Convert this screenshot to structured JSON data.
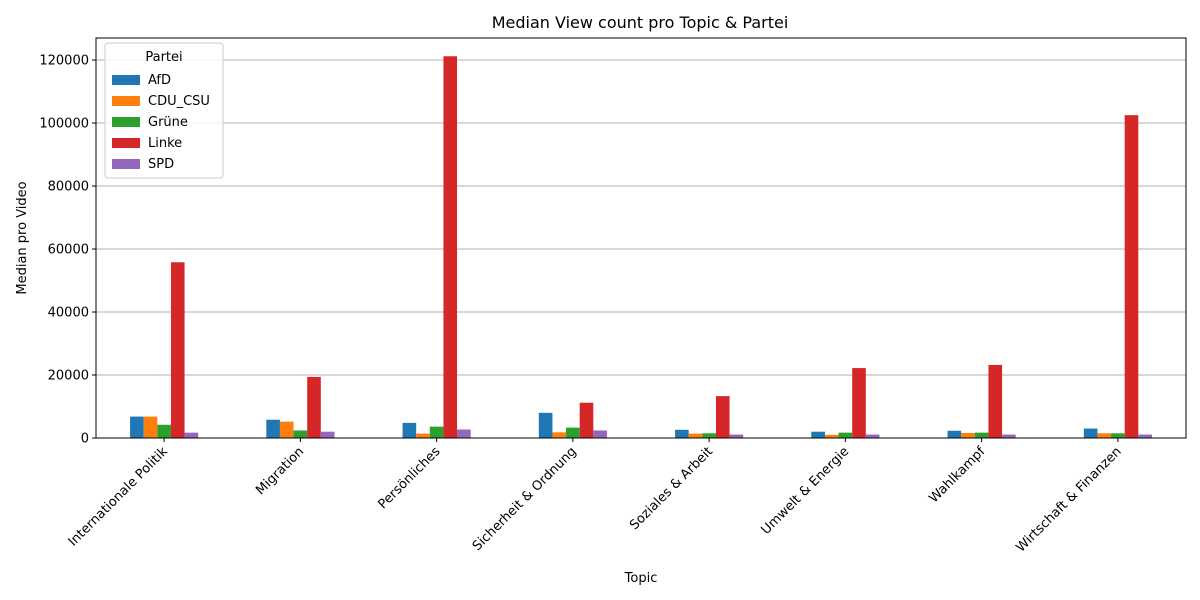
{
  "chart_data": {
    "type": "bar",
    "title": "Median View count pro Topic & Partei",
    "xlabel": "Topic",
    "ylabel": "Median pro Video",
    "ylim": [
      0,
      127000
    ],
    "yticks": [
      0,
      20000,
      40000,
      60000,
      80000,
      100000,
      120000
    ],
    "grid": "y",
    "legend": {
      "title": "Partei",
      "placement": "top-left"
    },
    "categories": [
      "Internationale Politik",
      "Migration",
      "Persönliches",
      "Sicherheit & Ordnung",
      "Soziales & Arbeit",
      "Umwelt & Energie",
      "Wahlkampf",
      "Wirtschaft & Finanzen"
    ],
    "series": [
      {
        "name": "AfD",
        "color": "#1f77b4",
        "values": [
          6800,
          5800,
          4800,
          8000,
          2600,
          2000,
          2300,
          3000
        ]
      },
      {
        "name": "CDU_CSU",
        "color": "#ff7f0e",
        "values": [
          6800,
          5200,
          1400,
          1800,
          1400,
          1000,
          1600,
          1500
        ]
      },
      {
        "name": "Grüne",
        "color": "#2ca02c",
        "values": [
          4200,
          2400,
          3600,
          3300,
          1500,
          1700,
          1700,
          1500
        ]
      },
      {
        "name": "Linke",
        "color": "#d62728",
        "values": [
          55800,
          19400,
          121200,
          11200,
          13300,
          22200,
          23200,
          102500
        ]
      },
      {
        "name": "SPD",
        "color": "#9467bd",
        "values": [
          1700,
          2000,
          2700,
          2400,
          1100,
          1100,
          1100,
          1100
        ]
      }
    ]
  }
}
